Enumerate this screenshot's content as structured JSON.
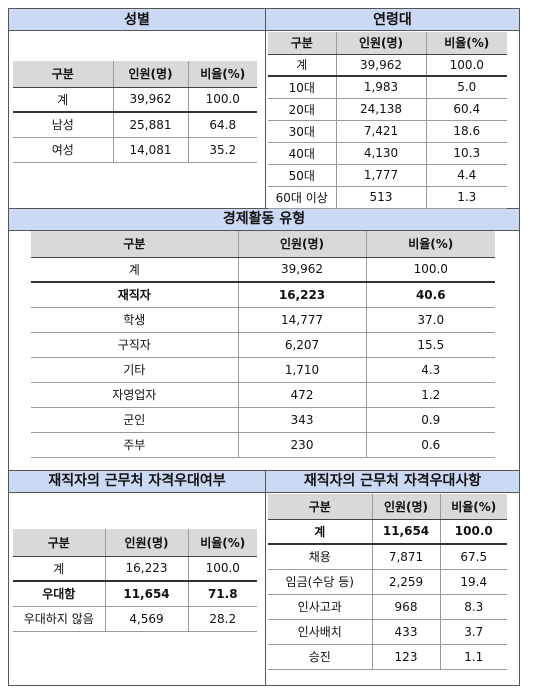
{
  "gender": {
    "title": "성별",
    "headers": [
      "구분",
      "인원(명)",
      "비율(%)"
    ],
    "rows": [
      [
        "계",
        "39,962",
        "100.0"
      ],
      [
        "남성",
        "25,881",
        "64.8"
      ],
      [
        "여성",
        "14,081",
        "35.2"
      ]
    ]
  },
  "age": {
    "title": "연령대",
    "headers": [
      "구분",
      "인원(명)",
      "비율(%)"
    ],
    "rows": [
      [
        "계",
        "39,962",
        "100.0"
      ],
      [
        "10대",
        "1,983",
        "5.0"
      ],
      [
        "20대",
        "24,138",
        "60.4"
      ],
      [
        "30대",
        "7,421",
        "18.6"
      ],
      [
        "40대",
        "4,130",
        "10.3"
      ],
      [
        "50대",
        "1,777",
        "4.4"
      ],
      [
        "60대 이상",
        "513",
        "1.3"
      ]
    ]
  },
  "economic": {
    "title": "경제활동 유형",
    "headers": [
      "구분",
      "인원(명)",
      "비율(%)"
    ],
    "rows": [
      [
        "계",
        "39,962",
        "100.0"
      ],
      [
        "재직자",
        "16,223",
        "40.6"
      ],
      [
        "학생",
        "14,777",
        "37.0"
      ],
      [
        "구직자",
        "6,207",
        "15.5"
      ],
      [
        "기타",
        "1,710",
        "4.3"
      ],
      [
        "자영업자",
        "472",
        "1.2"
      ],
      [
        "군인",
        "343",
        "0.9"
      ],
      [
        "주부",
        "230",
        "0.6"
      ]
    ]
  },
  "pref_status": {
    "title": "재직자의 근무처 자격우대여부",
    "headers": [
      "구분",
      "인원(명)",
      "비율(%)"
    ],
    "rows": [
      [
        "계",
        "16,223",
        "100.0"
      ],
      [
        "우대함",
        "11,654",
        "71.8"
      ],
      [
        "우대하지 않음",
        "4,569",
        "28.2"
      ]
    ]
  },
  "pref_items": {
    "title": "재직자의 근무처 자격우대사항",
    "headers": [
      "구분",
      "인원(명)",
      "비율(%)"
    ],
    "rows": [
      [
        "계",
        "11,654",
        "100.0"
      ],
      [
        "채용",
        "7,871",
        "67.5"
      ],
      [
        "임금(수당 등)",
        "2,259",
        "19.4"
      ],
      [
        "인사고과",
        "968",
        "8.3"
      ],
      [
        "인사배치",
        "433",
        "3.7"
      ],
      [
        "승진",
        "123",
        "1.1"
      ]
    ]
  }
}
